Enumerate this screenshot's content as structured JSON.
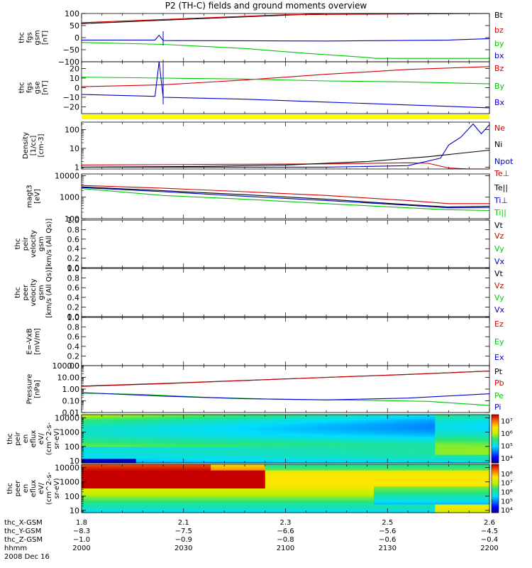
{
  "title": "P2 (TH-C) fields and ground moments overview",
  "colors": {
    "black": "#000000",
    "red": "#d40000",
    "green": "#00c800",
    "blue": "#0000d0",
    "yellow": "#ffff00"
  },
  "chart_data": [
    {
      "type": "line",
      "panel": "fgs_gsm",
      "ylabel": [
        "thc",
        "fgs",
        "gsm",
        "[nT]"
      ],
      "ylim": [
        -100,
        100
      ],
      "yticks": [
        "100",
        "50",
        "0",
        "−50",
        "−100"
      ],
      "ytick_vals": [
        100,
        50,
        0,
        -50,
        -100
      ],
      "legend": [
        "Bt",
        "bz",
        "by",
        "bx"
      ],
      "series": [
        {
          "name": "Bt",
          "color": "#000000",
          "x": [
            0,
            0.2,
            0.6,
            1.0
          ],
          "y": [
            58,
            72,
            100,
            125
          ]
        },
        {
          "name": "bz",
          "color": "#d40000",
          "x": [
            0,
            0.5,
            1.0
          ],
          "y": [
            62,
            95,
            125
          ]
        },
        {
          "name": "by",
          "color": "#00c800",
          "x": [
            0,
            0.2,
            0.4,
            0.55,
            0.7,
            0.72,
            1.0
          ],
          "y": [
            -20,
            -28,
            -45,
            -65,
            -82,
            -86,
            -86
          ]
        },
        {
          "name": "bx",
          "color": "#0000d0",
          "x": [
            0,
            0.18,
            0.19,
            0.2,
            0.6,
            0.9,
            1.0
          ],
          "y": [
            -10,
            -10,
            10,
            -12,
            -14,
            -10,
            -4
          ]
        }
      ]
    },
    {
      "type": "line",
      "panel": "fgs_gse",
      "ylabel": [
        "thc",
        "fgs",
        "gse",
        "[nT]"
      ],
      "ylim": [
        -27,
        27
      ],
      "yticks": [
        "20",
        "10",
        "0",
        "−10",
        "−20"
      ],
      "ytick_vals": [
        20,
        10,
        0,
        -10,
        -20
      ],
      "legend": [
        "Bz",
        "By",
        "Bx"
      ],
      "series": [
        {
          "name": "Bz",
          "color": "#d40000",
          "x": [
            0,
            0.2,
            0.4,
            0.6,
            0.8,
            1.0
          ],
          "y": [
            1,
            3,
            8,
            14,
            19,
            22
          ]
        },
        {
          "name": "By",
          "color": "#00c800",
          "x": [
            0,
            0.2,
            0.4,
            0.6,
            0.8,
            1.0
          ],
          "y": [
            11,
            10,
            9,
            7,
            6,
            4
          ]
        },
        {
          "name": "Bx",
          "color": "#0000d0",
          "x": [
            0,
            0.18,
            0.19,
            0.2,
            0.4,
            0.6,
            0.8,
            1.0
          ],
          "y": [
            -7,
            -9,
            35,
            -10,
            -12,
            -15,
            -18,
            -21
          ]
        }
      ]
    },
    {
      "type": "line",
      "panel": "density",
      "ylabel": [
        "Density",
        "[1/cc]",
        "[cm-3]"
      ],
      "scale": "log",
      "ylim": [
        0.8,
        250
      ],
      "yticks": [
        "100",
        "10",
        "1"
      ],
      "ytick_vals": [
        100,
        10,
        1
      ],
      "legend": [
        "Ne",
        "Ni",
        "Npot"
      ],
      "series": [
        {
          "name": "Ne",
          "color": "#d40000",
          "x": [
            0,
            0.3,
            0.6,
            0.8,
            0.85,
            0.9,
            0.95,
            1.0
          ],
          "y": [
            1.3,
            1.4,
            1.5,
            1.7,
            1.6,
            0.9,
            0.75,
            0.8
          ]
        },
        {
          "name": "Ni",
          "color": "#000000",
          "x": [
            0,
            0.3,
            0.5,
            0.7,
            0.85,
            1.0
          ],
          "y": [
            1.0,
            1.1,
            1.3,
            2.0,
            3.6,
            8.0
          ]
        },
        {
          "name": "Npot",
          "color": "#0000d0",
          "x": [
            0,
            0.6,
            0.8,
            0.88,
            0.9,
            0.93,
            0.96,
            0.98,
            1.0
          ],
          "y": [
            1.0,
            1.0,
            1.2,
            3.0,
            15,
            40,
            200,
            60,
            180
          ]
        }
      ]
    },
    {
      "type": "line",
      "panel": "temperature",
      "ylabel": [
        "magt3",
        "[eV]"
      ],
      "scale": "log",
      "ylim": [
        100,
        12000
      ],
      "yticks": [
        "10000",
        "1000",
        "100"
      ],
      "ytick_vals": [
        10000,
        1000,
        100
      ],
      "legend": [
        "Te⊥",
        "Te||",
        "Ti⊥",
        "Ti||"
      ],
      "series": [
        {
          "name": "Te⊥",
          "color": "#d40000",
          "x": [
            0,
            0.2,
            0.4,
            0.6,
            0.8,
            0.9,
            1.0
          ],
          "y": [
            3500,
            2600,
            1800,
            1200,
            700,
            500,
            500
          ]
        },
        {
          "name": "Te||",
          "color": "#000000",
          "x": [
            0,
            0.2,
            0.4,
            0.6,
            0.8,
            0.9,
            1.0
          ],
          "y": [
            3000,
            2000,
            1300,
            800,
            450,
            350,
            380
          ]
        },
        {
          "name": "Ti⊥",
          "color": "#0000d0",
          "x": [
            0,
            0.2,
            0.4,
            0.6,
            0.8,
            0.9,
            1.0
          ],
          "y": [
            2800,
            1800,
            1100,
            700,
            420,
            320,
            330
          ]
        },
        {
          "name": "Ti||",
          "color": "#00c800",
          "x": [
            0,
            0.2,
            0.4,
            0.6,
            0.8,
            0.9,
            1.0
          ],
          "y": [
            2500,
            1200,
            800,
            500,
            320,
            260,
            240
          ]
        }
      ]
    },
    {
      "type": "line",
      "panel": "peir_velocity",
      "ylabel": [
        "thc",
        "peir",
        "velocity",
        "gsm",
        "[km/s (All Qs)]"
      ],
      "ylim": [
        0,
        1
      ],
      "yticks": [
        "1.0",
        "0.8",
        "0.6",
        "0.4",
        "0.2",
        "0.0"
      ],
      "ytick_vals": [
        1,
        0.8,
        0.6,
        0.4,
        0.2,
        0
      ],
      "legend": [
        "Vt",
        "Vz",
        "Vy",
        "Vx"
      ],
      "series": []
    },
    {
      "type": "line",
      "panel": "peer_velocity",
      "ylabel": [
        "thc",
        "peer",
        "velocity",
        "gsm",
        "[km/s (All Qs)]"
      ],
      "ylim": [
        0,
        1
      ],
      "yticks": [
        "1.0",
        "0.8",
        "0.6",
        "0.4",
        "0.2",
        "0.0"
      ],
      "ytick_vals": [
        1,
        0.8,
        0.6,
        0.4,
        0.2,
        0
      ],
      "legend": [
        "Vt",
        "Vz",
        "Vy",
        "Vx"
      ],
      "series": []
    },
    {
      "type": "line",
      "panel": "efield",
      "ylabel": [
        "E=-VxB",
        "[mV/m]"
      ],
      "ylim": [
        0,
        1
      ],
      "yticks": [
        "1.0",
        "0.8",
        "0.6",
        "0.4",
        "0.2",
        "0.0"
      ],
      "ytick_vals": [
        1,
        0.8,
        0.6,
        0.4,
        0.2,
        0
      ],
      "legend": [
        "Ez",
        "Ey",
        "Ex"
      ],
      "series": []
    },
    {
      "type": "line",
      "panel": "pressure",
      "ylabel": [
        "Pressure",
        "[nPa]"
      ],
      "scale": "log",
      "ylim": [
        0.01,
        100
      ],
      "yticks": [
        "100.00",
        "10.00",
        "1.00",
        "0.10",
        "0.01"
      ],
      "ytick_vals": [
        100,
        10,
        1,
        0.1,
        0.01
      ],
      "legend": [
        "Pt",
        "Pb",
        "Pe",
        "Pi"
      ],
      "series": [
        {
          "name": "Pt",
          "color": "#000000",
          "x": [
            0,
            0.2,
            0.4,
            0.6,
            0.8,
            1.0
          ],
          "y": [
            1.8,
            3.0,
            5.5,
            10,
            18,
            35
          ]
        },
        {
          "name": "Pb",
          "color": "#d40000",
          "x": [
            0,
            0.2,
            0.4,
            0.6,
            0.8,
            1.0
          ],
          "y": [
            1.7,
            2.9,
            5.3,
            9.8,
            17.5,
            34
          ]
        },
        {
          "name": "Pe",
          "color": "#00c800",
          "x": [
            0,
            0.15,
            0.3,
            0.5,
            0.7,
            0.85,
            1.0
          ],
          "y": [
            0.45,
            0.35,
            0.2,
            0.13,
            0.11,
            0.09,
            0.04
          ]
        },
        {
          "name": "Pi",
          "color": "#0000d0",
          "x": [
            0,
            0.2,
            0.4,
            0.6,
            0.8,
            1.0
          ],
          "y": [
            0.5,
            0.25,
            0.15,
            0.12,
            0.17,
            0.4
          ]
        }
      ]
    },
    {
      "type": "heatmap",
      "panel": "peir_en_eflux",
      "ylabel": [
        "thc",
        "peir",
        "en",
        "eflux",
        "eV/",
        "(cm^2-s-",
        "sr-eV)"
      ],
      "scale": "log",
      "ylim": [
        7,
        17000
      ],
      "yticks": [
        "10000",
        "1000",
        "100",
        "10"
      ],
      "ytick_vals": [
        10000,
        1000,
        100,
        10
      ],
      "colorbar": {
        "range": [
          4000,
          30000000
        ],
        "labels": [
          "10⁷",
          "10⁶",
          "10⁵",
          "10⁴"
        ],
        "label_vals": [
          10000000,
          1000000,
          100000,
          10000
        ]
      }
    },
    {
      "type": "heatmap",
      "panel": "peer_en_eflux",
      "ylabel": [
        "thc",
        "peer",
        "en",
        "eflux",
        "eV/",
        "(cm^2-s-",
        "sr-eV)"
      ],
      "scale": "log",
      "ylim": [
        7,
        17000
      ],
      "yticks": [
        "10000",
        "1000",
        "100",
        "10"
      ],
      "ytick_vals": [
        10000,
        1000,
        100,
        10
      ],
      "colorbar": {
        "range": [
          5000,
          1000000000
        ],
        "labels": [
          "10⁸",
          "10⁷",
          "10⁶",
          "10⁵",
          "10⁴"
        ],
        "label_vals": [
          100000000,
          10000000,
          1000000,
          100000,
          10000
        ]
      }
    }
  ],
  "x_axis": {
    "rows": [
      {
        "label": "thc_X-GSM",
        "values": [
          "1.8",
          "2.1",
          "2.3",
          "2.5",
          "2.6"
        ]
      },
      {
        "label": "thc_Y-GSM",
        "values": [
          "−8.3",
          "−7.5",
          "−6.6",
          "−5.6",
          "−4.5"
        ]
      },
      {
        "label": "thc_Z-GSM",
        "values": [
          "−1.0",
          "−0.9",
          "−0.8",
          "−0.6",
          "−0.4"
        ]
      },
      {
        "label": "hhmm",
        "values": [
          "2000",
          "2030",
          "2100",
          "2130",
          "2200"
        ]
      }
    ],
    "date": "2008 Dec 16"
  }
}
